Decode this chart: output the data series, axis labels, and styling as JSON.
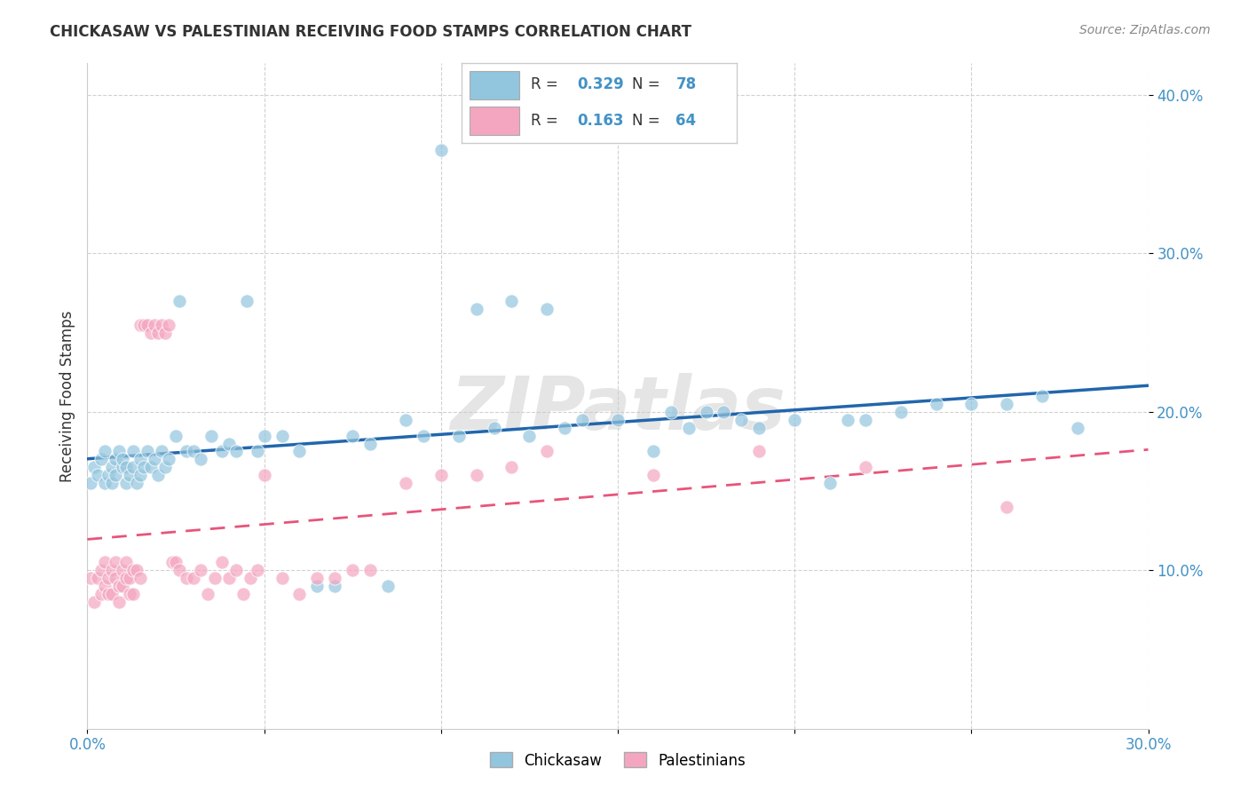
{
  "title": "CHICKASAW VS PALESTINIAN RECEIVING FOOD STAMPS CORRELATION CHART",
  "source": "Source: ZipAtlas.com",
  "ylabel": "Receiving Food Stamps",
  "x_min": 0.0,
  "x_max": 0.3,
  "y_min": 0.0,
  "y_max": 0.42,
  "chickasaw_color": "#92c5de",
  "palestinian_color": "#f4a6c0",
  "chickasaw_R": 0.329,
  "chickasaw_N": 78,
  "palestinian_R": 0.163,
  "palestinian_N": 64,
  "trend_blue_color": "#2166ac",
  "trend_pink_color": "#e8547a",
  "watermark": "ZIPatlas",
  "chickasaw_x": [
    0.001,
    0.002,
    0.003,
    0.004,
    0.005,
    0.005,
    0.006,
    0.007,
    0.007,
    0.008,
    0.008,
    0.009,
    0.01,
    0.01,
    0.011,
    0.011,
    0.012,
    0.013,
    0.013,
    0.014,
    0.015,
    0.015,
    0.016,
    0.017,
    0.018,
    0.019,
    0.02,
    0.021,
    0.022,
    0.023,
    0.025,
    0.026,
    0.028,
    0.03,
    0.032,
    0.035,
    0.038,
    0.04,
    0.042,
    0.045,
    0.048,
    0.05,
    0.055,
    0.06,
    0.065,
    0.07,
    0.075,
    0.08,
    0.085,
    0.09,
    0.095,
    0.1,
    0.105,
    0.11,
    0.115,
    0.12,
    0.125,
    0.13,
    0.135,
    0.14,
    0.15,
    0.16,
    0.165,
    0.17,
    0.175,
    0.18,
    0.185,
    0.19,
    0.2,
    0.21,
    0.215,
    0.22,
    0.23,
    0.24,
    0.25,
    0.26,
    0.27,
    0.28
  ],
  "chickasaw_y": [
    0.155,
    0.165,
    0.16,
    0.17,
    0.155,
    0.175,
    0.16,
    0.155,
    0.165,
    0.17,
    0.16,
    0.175,
    0.165,
    0.17,
    0.155,
    0.165,
    0.16,
    0.175,
    0.165,
    0.155,
    0.17,
    0.16,
    0.165,
    0.175,
    0.165,
    0.17,
    0.16,
    0.175,
    0.165,
    0.17,
    0.185,
    0.27,
    0.175,
    0.175,
    0.17,
    0.185,
    0.175,
    0.18,
    0.175,
    0.27,
    0.175,
    0.185,
    0.185,
    0.175,
    0.09,
    0.09,
    0.185,
    0.18,
    0.09,
    0.195,
    0.185,
    0.365,
    0.185,
    0.265,
    0.19,
    0.27,
    0.185,
    0.265,
    0.19,
    0.195,
    0.195,
    0.175,
    0.2,
    0.19,
    0.2,
    0.2,
    0.195,
    0.19,
    0.195,
    0.155,
    0.195,
    0.195,
    0.2,
    0.205,
    0.205,
    0.205,
    0.21,
    0.19
  ],
  "palestinian_x": [
    0.001,
    0.002,
    0.003,
    0.004,
    0.004,
    0.005,
    0.005,
    0.006,
    0.006,
    0.007,
    0.007,
    0.008,
    0.008,
    0.009,
    0.009,
    0.01,
    0.01,
    0.011,
    0.011,
    0.012,
    0.012,
    0.013,
    0.013,
    0.014,
    0.015,
    0.015,
    0.016,
    0.017,
    0.018,
    0.019,
    0.02,
    0.021,
    0.022,
    0.023,
    0.024,
    0.025,
    0.026,
    0.028,
    0.03,
    0.032,
    0.034,
    0.036,
    0.038,
    0.04,
    0.042,
    0.044,
    0.046,
    0.048,
    0.05,
    0.055,
    0.06,
    0.065,
    0.07,
    0.075,
    0.08,
    0.09,
    0.1,
    0.11,
    0.12,
    0.13,
    0.16,
    0.19,
    0.22,
    0.26
  ],
  "palestinian_y": [
    0.095,
    0.08,
    0.095,
    0.085,
    0.1,
    0.09,
    0.105,
    0.085,
    0.095,
    0.1,
    0.085,
    0.095,
    0.105,
    0.09,
    0.08,
    0.1,
    0.09,
    0.105,
    0.095,
    0.085,
    0.095,
    0.1,
    0.085,
    0.1,
    0.095,
    0.255,
    0.255,
    0.255,
    0.25,
    0.255,
    0.25,
    0.255,
    0.25,
    0.255,
    0.105,
    0.105,
    0.1,
    0.095,
    0.095,
    0.1,
    0.085,
    0.095,
    0.105,
    0.095,
    0.1,
    0.085,
    0.095,
    0.1,
    0.16,
    0.095,
    0.085,
    0.095,
    0.095,
    0.1,
    0.1,
    0.155,
    0.16,
    0.16,
    0.165,
    0.175,
    0.16,
    0.175,
    0.165,
    0.14
  ]
}
